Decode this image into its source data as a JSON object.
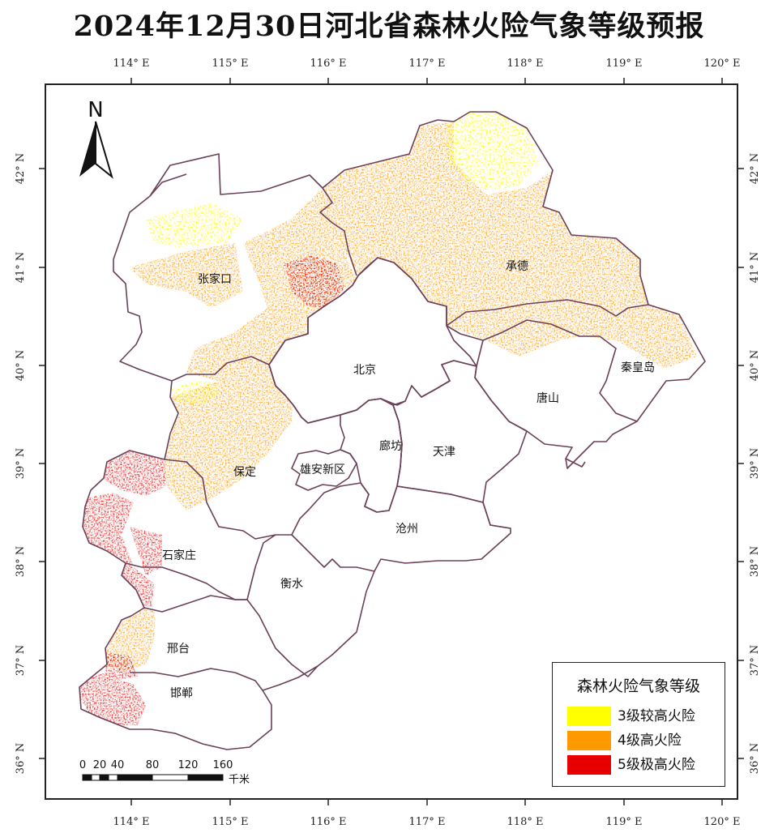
{
  "title": "2024年12月30日河北省森林火险气象等级预报",
  "axes": {
    "lon_labels": [
      "114° E",
      "115° E",
      "116° E",
      "117° E",
      "118° E",
      "119° E",
      "120° E"
    ],
    "lat_labels": [
      "42° N",
      "41° N",
      "40° N",
      "39° N",
      "38° N",
      "37° N",
      "36° N"
    ]
  },
  "north_arrow": {
    "label": "N",
    "icon": "north-arrow-icon"
  },
  "scale_bar": {
    "ticks": [
      "0",
      "20",
      "40",
      "80",
      "120",
      "160"
    ],
    "unit": "千米"
  },
  "cities": [
    {
      "name": "张家口"
    },
    {
      "name": "承德"
    },
    {
      "name": "北京"
    },
    {
      "name": "秦皇岛"
    },
    {
      "name": "唐山"
    },
    {
      "name": "廊坊"
    },
    {
      "name": "天津"
    },
    {
      "name": "保定"
    },
    {
      "name": "雄安新区"
    },
    {
      "name": "沧州"
    },
    {
      "name": "石家庄"
    },
    {
      "name": "衡水"
    },
    {
      "name": "邢台"
    },
    {
      "name": "邯郸"
    }
  ],
  "legend": {
    "title": "森林火险气象等级",
    "items": [
      {
        "label": "3级较高火险",
        "color": "#FFFF00"
      },
      {
        "label": "4级高火险",
        "color": "#FF9900"
      },
      {
        "label": "5级极高火险",
        "color": "#E60000"
      }
    ]
  },
  "colors": {
    "boundary": "#6b4058",
    "frame": "#222222"
  }
}
